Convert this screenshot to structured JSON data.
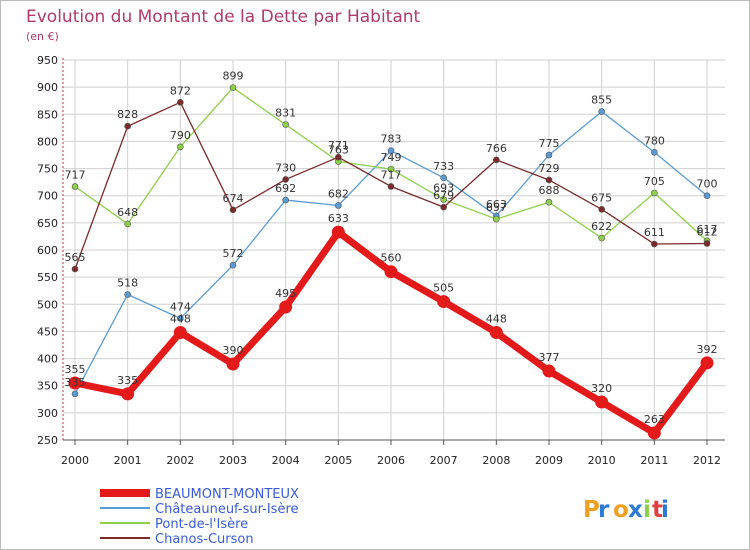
{
  "header": {
    "title": "Evolution du Montant de la Dette par Habitant",
    "unit": "(en €)"
  },
  "logo": {
    "text": "Proxiti"
  },
  "colors": {
    "main": "#e41a1a",
    "chateauneuf": "#5b9bd5",
    "pont": "#8ed04c",
    "chanos": "#7a2a2a",
    "grid": "#d0d0d0",
    "title": "#b03a6b",
    "axis_red": "#cc3333"
  },
  "chart_data": {
    "type": "line",
    "title": "Evolution du Montant de la Dette par Habitant",
    "subtitle": "(en €)",
    "xlabel": "",
    "ylabel": "",
    "x": [
      "2000",
      "2001",
      "2002",
      "2003",
      "2004",
      "2005",
      "2006",
      "2007",
      "2008",
      "2009",
      "2010",
      "2011",
      "2012"
    ],
    "ylim": [
      250,
      950
    ],
    "yticks": [
      250,
      300,
      350,
      400,
      450,
      500,
      550,
      600,
      650,
      700,
      750,
      800,
      850,
      900,
      950
    ],
    "grid": true,
    "legend_position": "bottom",
    "series": [
      {
        "name": "BEAUMONT-MONTEUX",
        "key": "main",
        "values": [
          355,
          335,
          448,
          390,
          495,
          633,
          560,
          505,
          448,
          377,
          320,
          263,
          392
        ]
      },
      {
        "name": "Châteauneuf-sur-Isère",
        "key": "chateauneuf",
        "values": [
          335,
          518,
          474,
          572,
          692,
          682,
          783,
          733,
          663,
          775,
          855,
          780,
          700
        ]
      },
      {
        "name": "Pont-de-l'Isère",
        "key": "pont",
        "values": [
          717,
          648,
          790,
          899,
          831,
          763,
          749,
          693,
          657,
          688,
          622,
          705,
          617
        ]
      },
      {
        "name": "Chanos-Curson",
        "key": "chanos",
        "values": [
          565,
          828,
          872,
          674,
          730,
          771,
          717,
          679,
          766,
          729,
          675,
          611,
          612
        ]
      }
    ]
  }
}
